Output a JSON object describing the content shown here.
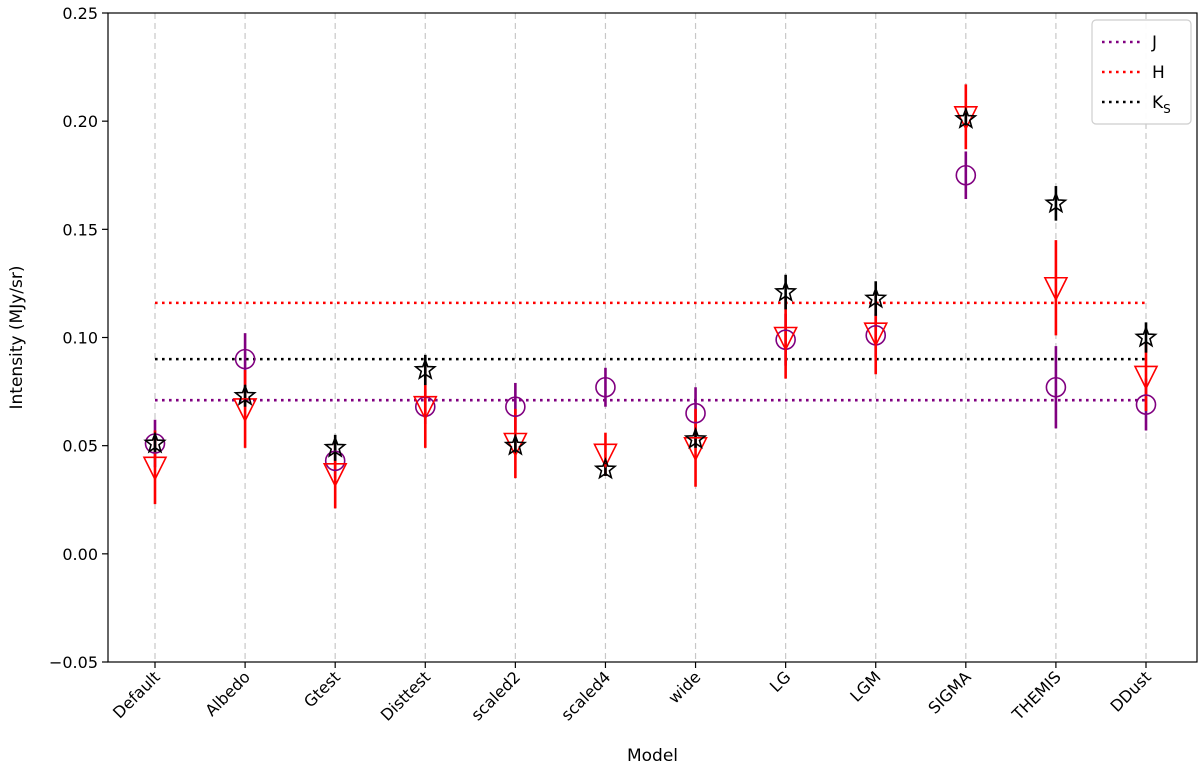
{
  "chart_data": {
    "type": "scatter",
    "title": "",
    "xlabel": "Model",
    "ylabel": "Intensity (MJy/sr)",
    "ylim": [
      -0.05,
      0.25
    ],
    "yticks": [
      -0.05,
      0.0,
      0.05,
      0.1,
      0.15,
      0.2,
      0.25
    ],
    "ytick_labels": [
      "−0.05",
      "0.00",
      "0.05",
      "0.10",
      "0.15",
      "0.20",
      "0.25"
    ],
    "categories": [
      "Default",
      "Albedo",
      "Gtest",
      "Disttest",
      "scaled2",
      "scaled4",
      "wide",
      "LG",
      "LGM",
      "SIGMA",
      "THEMIS",
      "DDust"
    ],
    "legend_position": "top-right",
    "grid": "vertical dashed",
    "series": [
      {
        "name": "J",
        "color": "#800080",
        "marker": "circle",
        "values": [
          0.051,
          0.09,
          0.043,
          0.068,
          0.068,
          0.077,
          0.065,
          0.099,
          0.101,
          0.175,
          0.077,
          0.069
        ],
        "errors": [
          0.011,
          0.012,
          0.008,
          0.008,
          0.011,
          0.009,
          0.012,
          0.012,
          0.01,
          0.011,
          0.019,
          0.012
        ],
        "reference": 0.071
      },
      {
        "name": "H",
        "color": "#ff0000",
        "marker": "triangle-down",
        "values": [
          0.04,
          0.067,
          0.037,
          0.068,
          0.051,
          0.046,
          0.049,
          0.1,
          0.102,
          0.202,
          0.123,
          0.082
        ],
        "errors": [
          0.017,
          0.018,
          0.016,
          0.019,
          0.016,
          0.01,
          0.018,
          0.019,
          0.019,
          0.015,
          0.022,
          0.016
        ],
        "reference": 0.116
      },
      {
        "name": "K",
        "name_subscript": "S",
        "color": "#000000",
        "marker": "star",
        "values": [
          0.051,
          0.073,
          0.049,
          0.085,
          0.05,
          0.039,
          0.053,
          0.121,
          0.118,
          0.201,
          0.162,
          0.1
        ],
        "errors": [
          0.004,
          0.005,
          0.006,
          0.007,
          0.004,
          0.003,
          0.004,
          0.008,
          0.008,
          0.003,
          0.008,
          0.007
        ],
        "reference": 0.09
      }
    ]
  }
}
